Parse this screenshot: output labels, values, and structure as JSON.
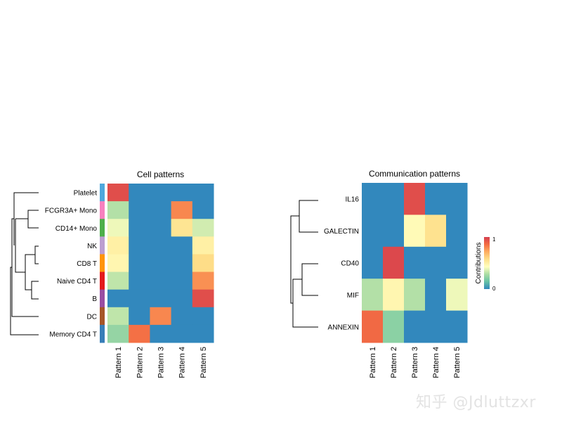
{
  "watermark": "知乎 @Jdluttzxr",
  "chart_data": [
    {
      "type": "heatmap",
      "title": "Cell patterns",
      "columns": [
        "Pattern 1",
        "Pattern 2",
        "Pattern 3",
        "Pattern 4",
        "Pattern 5"
      ],
      "rows": [
        "Platelet",
        "FCGR3A+ Mono",
        "CD14+ Mono",
        "NK",
        "CD8 T",
        "Naive CD4 T",
        "B",
        "DC",
        "Memory CD4 T"
      ],
      "row_colors": [
        "#4FA8DC",
        "#F781BF",
        "#4DAF4A",
        "#BC9ED0",
        "#FF9408",
        "#E41A1C",
        "#984EA3",
        "#A65628",
        "#377EB8"
      ],
      "values": [
        [
          0.95,
          0,
          0,
          0,
          0
        ],
        [
          0.3,
          0,
          0,
          0.8,
          0
        ],
        [
          0.4,
          0,
          0,
          0.55,
          0.35
        ],
        [
          0.5,
          0,
          0,
          0,
          0.5
        ],
        [
          0.47,
          0,
          0,
          0,
          0.58
        ],
        [
          0.32,
          0,
          0,
          0,
          0.78
        ],
        [
          0,
          0,
          0,
          0,
          0.95
        ],
        [
          0.32,
          0,
          0.8,
          0,
          0
        ],
        [
          0.24,
          0.85,
          0,
          0,
          0
        ]
      ],
      "dendrogram": "rows, left"
    },
    {
      "type": "heatmap",
      "title": "Communication patterns",
      "columns": [
        "Pattern 1",
        "Pattern 2",
        "Pattern 3",
        "Pattern 4",
        "Pattern 5"
      ],
      "rows": [
        "IL16",
        "GALECTIN",
        "CD40",
        "MIF",
        "ANNEXIN"
      ],
      "values": [
        [
          0,
          0,
          0.95,
          0,
          0
        ],
        [
          0,
          0,
          0.45,
          0.56,
          0
        ],
        [
          0,
          0.97,
          0,
          0,
          0
        ],
        [
          0.3,
          0.47,
          0.3,
          0,
          0.4
        ],
        [
          0.87,
          0.22,
          0,
          0,
          0
        ]
      ],
      "legend": {
        "title": "Contributions",
        "min_label": "0",
        "max_label": "1",
        "range": [
          0,
          1
        ],
        "placement": "right"
      },
      "dendrogram": "rows, left"
    }
  ],
  "colorscale": [
    "#3288BD",
    "#66C2A5",
    "#ABDDA4",
    "#FFFFBF",
    "#FEE08B",
    "#FDAE61",
    "#F46D43",
    "#D53E4F"
  ]
}
